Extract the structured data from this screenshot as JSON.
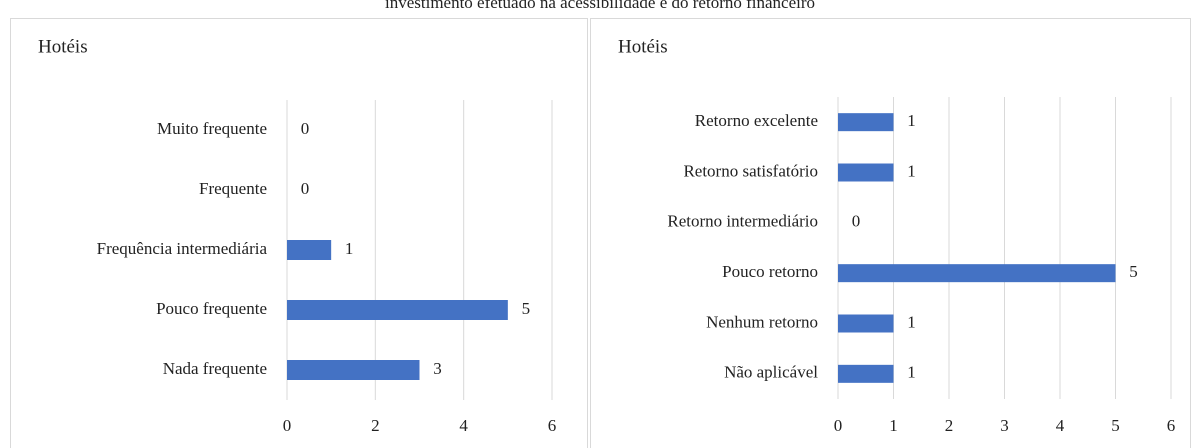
{
  "caption": "investimento efetuado na acessibilidade e do retorno financeiro",
  "chart_data": [
    {
      "type": "bar",
      "title": "Hotéis",
      "categories": [
        "Muito frequente",
        "Frequente",
        "Frequência intermediária",
        "Pouco frequente",
        "Nada frequente"
      ],
      "values": [
        0,
        0,
        1,
        5,
        3
      ],
      "color": "#4472c4",
      "xlim": [
        0,
        6
      ],
      "xticks": [
        0,
        2,
        4,
        6
      ],
      "grid": true
    },
    {
      "type": "bar",
      "title": "Hotéis",
      "categories": [
        "Retorno excelente",
        "Retorno satisfatório",
        "Retorno intermediário",
        "Pouco retorno",
        "Nenhum retorno",
        "Não aplicável"
      ],
      "values": [
        1,
        1,
        0,
        5,
        1,
        1
      ],
      "color": "#4472c4",
      "xlim": [
        0,
        6
      ],
      "xticks": [
        0,
        1,
        2,
        3,
        4,
        5,
        6
      ],
      "grid": true
    }
  ]
}
